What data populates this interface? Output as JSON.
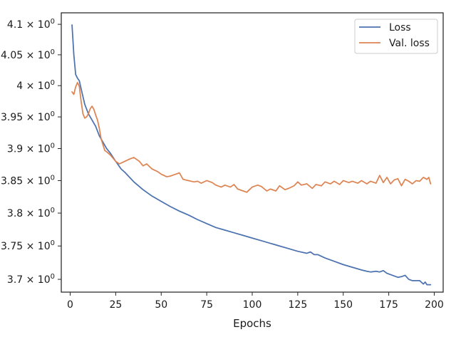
{
  "chart_data": {
    "type": "line",
    "title": "",
    "xlabel": "Epochs",
    "ylabel": "",
    "xlim": [
      -4.9,
      204.9
    ],
    "ylim": [
      3.681,
      4.119
    ],
    "yscale": "log",
    "grid": false,
    "legend_position": "top-right",
    "x_ticks": [
      0,
      25,
      50,
      75,
      100,
      125,
      150,
      175,
      200
    ],
    "y_ticks": [
      3.7,
      3.75,
      3.8,
      3.85,
      3.9,
      3.95,
      4.0,
      4.05,
      4.1
    ],
    "y_tick_labels": [
      {
        "mantissa": "3.7",
        "base": "10",
        "exp": "0"
      },
      {
        "mantissa": "3.75",
        "base": "10",
        "exp": "0"
      },
      {
        "mantissa": "3.8",
        "base": "10",
        "exp": "0"
      },
      {
        "mantissa": "3.85",
        "base": "10",
        "exp": "0"
      },
      {
        "mantissa": "3.9",
        "base": "10",
        "exp": "0"
      },
      {
        "mantissa": "3.95",
        "base": "10",
        "exp": "0"
      },
      {
        "mantissa": "4",
        "base": "10",
        "exp": "0"
      },
      {
        "mantissa": "4.05",
        "base": "10",
        "exp": "0"
      },
      {
        "mantissa": "4.1",
        "base": "10",
        "exp": "0"
      }
    ],
    "series": [
      {
        "name": "Loss",
        "color": "#4c72b0",
        "x": [
          1,
          2,
          3,
          4,
          5,
          6,
          8,
          10,
          12,
          14,
          16,
          18,
          20,
          22,
          25,
          28,
          30,
          35,
          40,
          45,
          50,
          55,
          60,
          65,
          70,
          75,
          80,
          85,
          90,
          95,
          100,
          105,
          110,
          115,
          120,
          125,
          130,
          132,
          134,
          136,
          140,
          145,
          150,
          155,
          160,
          163,
          165,
          168,
          170,
          172,
          174,
          176,
          178,
          180,
          182,
          184,
          186,
          188,
          190,
          192,
          194,
          195,
          196,
          198
        ],
        "values": [
          4.099,
          4.05,
          4.018,
          4.012,
          4.008,
          3.995,
          3.97,
          3.955,
          3.945,
          3.935,
          3.92,
          3.91,
          3.9,
          3.893,
          3.88,
          3.868,
          3.863,
          3.848,
          3.836,
          3.826,
          3.818,
          3.81,
          3.803,
          3.797,
          3.79,
          3.784,
          3.778,
          3.774,
          3.77,
          3.766,
          3.762,
          3.758,
          3.754,
          3.75,
          3.746,
          3.742,
          3.739,
          3.741,
          3.737,
          3.737,
          3.732,
          3.727,
          3.722,
          3.718,
          3.714,
          3.712,
          3.711,
          3.712,
          3.711,
          3.713,
          3.709,
          3.707,
          3.705,
          3.703,
          3.704,
          3.706,
          3.7,
          3.698,
          3.698,
          3.698,
          3.693,
          3.696,
          3.692,
          3.692
        ]
      },
      {
        "name": "Val. loss",
        "color": "#dd8452",
        "x": [
          1,
          2,
          3,
          4,
          5,
          6,
          7,
          8,
          9,
          10,
          11,
          12,
          13,
          14,
          15,
          16,
          17,
          18,
          19,
          20,
          22,
          25,
          27,
          30,
          33,
          35,
          38,
          40,
          42,
          45,
          48,
          50,
          53,
          55,
          58,
          60,
          62,
          65,
          68,
          70,
          72,
          75,
          78,
          80,
          83,
          85,
          88,
          90,
          92,
          95,
          97,
          100,
          103,
          105,
          108,
          110,
          113,
          115,
          118,
          120,
          123,
          125,
          127,
          130,
          133,
          135,
          138,
          140,
          143,
          145,
          148,
          150,
          153,
          155,
          158,
          160,
          163,
          165,
          168,
          170,
          172,
          174,
          176,
          178,
          180,
          182,
          184,
          186,
          188,
          190,
          192,
          194,
          196,
          197,
          198
        ],
        "values": [
          3.99,
          3.986,
          3.998,
          4.005,
          3.999,
          3.975,
          3.955,
          3.948,
          3.95,
          3.955,
          3.963,
          3.967,
          3.962,
          3.953,
          3.945,
          3.932,
          3.915,
          3.906,
          3.897,
          3.895,
          3.89,
          3.88,
          3.876,
          3.88,
          3.884,
          3.886,
          3.88,
          3.873,
          3.876,
          3.868,
          3.864,
          3.86,
          3.856,
          3.857,
          3.86,
          3.862,
          3.852,
          3.85,
          3.848,
          3.849,
          3.846,
          3.85,
          3.847,
          3.843,
          3.84,
          3.843,
          3.84,
          3.844,
          3.837,
          3.834,
          3.832,
          3.84,
          3.843,
          3.841,
          3.834,
          3.837,
          3.834,
          3.842,
          3.836,
          3.838,
          3.842,
          3.848,
          3.843,
          3.845,
          3.838,
          3.844,
          3.842,
          3.848,
          3.845,
          3.849,
          3.844,
          3.85,
          3.847,
          3.849,
          3.846,
          3.85,
          3.845,
          3.849,
          3.846,
          3.858,
          3.847,
          3.855,
          3.845,
          3.851,
          3.853,
          3.842,
          3.852,
          3.849,
          3.845,
          3.85,
          3.849,
          3.855,
          3.852,
          3.855,
          3.845
        ]
      }
    ]
  }
}
